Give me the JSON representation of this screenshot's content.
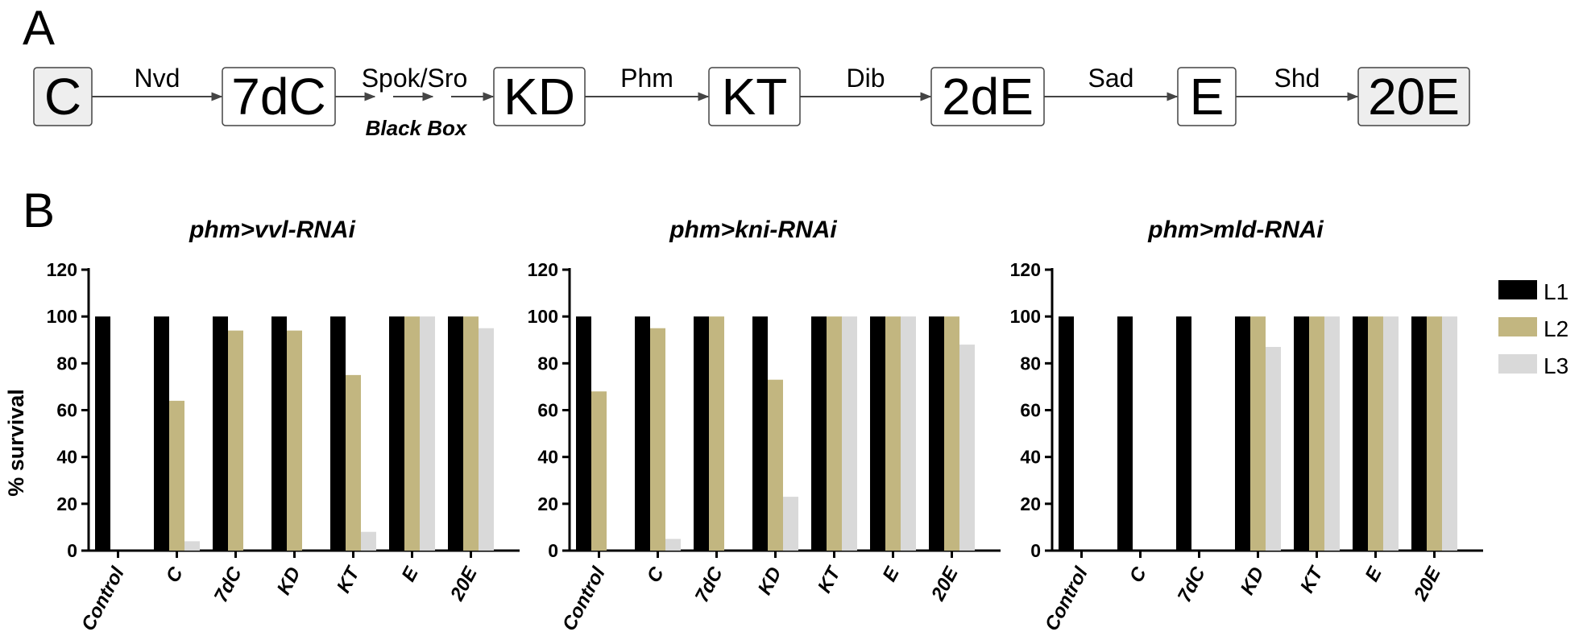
{
  "panel_a": {
    "label": "A",
    "nodes": [
      {
        "label": "C",
        "shaded": true
      },
      {
        "label": "7dC",
        "shaded": false
      },
      {
        "label": "KD",
        "shaded": false
      },
      {
        "label": "KT",
        "shaded": false
      },
      {
        "label": "2dE",
        "shaded": false
      },
      {
        "label": "E",
        "shaded": false
      },
      {
        "label": "20E",
        "shaded": true
      }
    ],
    "enzymes": [
      "Nvd",
      "Spok/Sro",
      "Phm",
      "Dib",
      "Sad",
      "Shd"
    ],
    "black_box_label": "Black Box"
  },
  "panel_b": {
    "label": "B",
    "ylabel": "% survival"
  },
  "colors": {
    "L1": "#000000",
    "L2": "#c2b680",
    "L3": "#d9d9d9"
  },
  "chart_data": [
    {
      "type": "bar",
      "title": "phm>vvl-RNAi",
      "categories": [
        "Control",
        "C",
        "7dC",
        "KD",
        "KT",
        "E",
        "20E"
      ],
      "ylabel": "% survival",
      "ylim": [
        0,
        120
      ],
      "yticks": [
        0,
        20,
        40,
        60,
        80,
        100,
        120
      ],
      "series": [
        {
          "name": "L1",
          "values": [
            100,
            100,
            100,
            100,
            100,
            100,
            100
          ]
        },
        {
          "name": "L2",
          "values": [
            0,
            64,
            94,
            94,
            75,
            100,
            100
          ]
        },
        {
          "name": "L3",
          "values": [
            0,
            4,
            0,
            0,
            8,
            100,
            95
          ]
        }
      ]
    },
    {
      "type": "bar",
      "title": "phm>kni-RNAi",
      "categories": [
        "Control",
        "C",
        "7dC",
        "KD",
        "KT",
        "E",
        "20E"
      ],
      "ylim": [
        0,
        120
      ],
      "yticks": [
        0,
        20,
        40,
        60,
        80,
        100,
        120
      ],
      "series": [
        {
          "name": "L1",
          "values": [
            100,
            100,
            100,
            100,
            100,
            100,
            100
          ]
        },
        {
          "name": "L2",
          "values": [
            68,
            95,
            100,
            73,
            100,
            100,
            100
          ]
        },
        {
          "name": "L3",
          "values": [
            0,
            5,
            0,
            23,
            100,
            100,
            88
          ]
        }
      ]
    },
    {
      "type": "bar",
      "title": "phm>mld-RNAi",
      "categories": [
        "Control",
        "C",
        "7dC",
        "KD",
        "KT",
        "E",
        "20E"
      ],
      "ylim": [
        0,
        120
      ],
      "yticks": [
        0,
        20,
        40,
        60,
        80,
        100,
        120
      ],
      "series": [
        {
          "name": "L1",
          "values": [
            100,
            100,
            100,
            100,
            100,
            100,
            100
          ]
        },
        {
          "name": "L2",
          "values": [
            0,
            0,
            0,
            100,
            100,
            100,
            100
          ]
        },
        {
          "name": "L3",
          "values": [
            0,
            0,
            0,
            87,
            100,
            100,
            100
          ]
        }
      ]
    }
  ],
  "legend": {
    "position": "right",
    "entries": [
      "L1",
      "L2",
      "L3"
    ]
  }
}
